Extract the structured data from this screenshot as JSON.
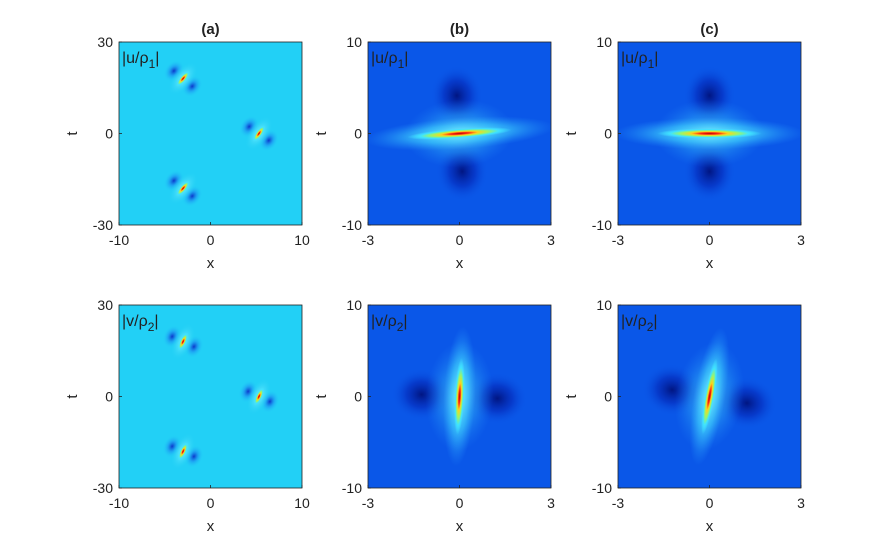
{
  "chart_data": [
    {
      "type": "heatmap",
      "panel": "(a)",
      "row": 0,
      "col": 0,
      "title": "(a)",
      "label": "|u/ρ₁|",
      "label_base": "|u/ρ",
      "label_sub": "1",
      "label_end": "|",
      "xlabel": "x",
      "ylabel": "t",
      "xlim": [
        -10,
        10
      ],
      "ylim": [
        -30,
        30
      ],
      "xticks": [
        "-10",
        "0",
        "10"
      ],
      "yticks": [
        "30",
        "0",
        "-30"
      ],
      "background": "#22d0f6",
      "features": [
        {
          "x": -3,
          "t": 18,
          "angle": -50,
          "kind": "peak"
        },
        {
          "x": 5.3,
          "t": 0,
          "angle": -55,
          "kind": "peak"
        },
        {
          "x": -3,
          "t": -18,
          "angle": -50,
          "kind": "peak"
        }
      ]
    },
    {
      "type": "heatmap",
      "panel": "(b)",
      "row": 0,
      "col": 1,
      "title": "(b)",
      "label": "|u/ρ₁|",
      "label_base": "|u/ρ",
      "label_sub": "1",
      "label_end": "|",
      "xlabel": "x",
      "ylabel": "t",
      "xlim": [
        -3,
        3
      ],
      "ylim": [
        -10,
        10
      ],
      "xticks": [
        "-3",
        "0",
        "3"
      ],
      "yticks": [
        "10",
        "0",
        "-10"
      ],
      "background": "#0a57e8",
      "features": [
        {
          "x": 0,
          "t": 0,
          "angle": -4,
          "kind": "peak"
        }
      ]
    },
    {
      "type": "heatmap",
      "panel": "(c)",
      "row": 0,
      "col": 2,
      "title": "(c)",
      "label": "|u/ρ₁|",
      "label_base": "|u/ρ",
      "label_sub": "1",
      "label_end": "|",
      "xlabel": "x",
      "ylabel": "t",
      "xlim": [
        -3,
        3
      ],
      "ylim": [
        -10,
        10
      ],
      "xticks": [
        "-3",
        "0",
        "3"
      ],
      "yticks": [
        "10",
        "0",
        "-10"
      ],
      "background": "#0a57e8",
      "features": [
        {
          "x": 0,
          "t": 0,
          "angle": 0,
          "kind": "peak"
        }
      ]
    },
    {
      "type": "heatmap",
      "panel": "(a)",
      "row": 1,
      "col": 0,
      "title": "",
      "label": "|v/ρ₂|",
      "label_base": "|v/ρ",
      "label_sub": "2",
      "label_end": "|",
      "xlabel": "x",
      "ylabel": "t",
      "xlim": [
        -10,
        10
      ],
      "ylim": [
        -30,
        30
      ],
      "xticks": [
        "-10",
        "0",
        "10"
      ],
      "yticks": [
        "30",
        "0",
        "-30"
      ],
      "background": "#22d0f6",
      "features": [
        {
          "x": -3,
          "t": 18,
          "angle": -65,
          "kind": "peak"
        },
        {
          "x": 5.3,
          "t": 0,
          "angle": -65,
          "kind": "peak"
        },
        {
          "x": -3,
          "t": -18,
          "angle": -65,
          "kind": "peak"
        }
      ]
    },
    {
      "type": "heatmap",
      "panel": "(b)",
      "row": 1,
      "col": 1,
      "title": "",
      "label": "|v/ρ₂|",
      "label_base": "|v/ρ",
      "label_sub": "2",
      "label_end": "|",
      "xlabel": "x",
      "ylabel": "t",
      "xlim": [
        -3,
        3
      ],
      "ylim": [
        -10,
        10
      ],
      "xticks": [
        "-3",
        "0",
        "3"
      ],
      "yticks": [
        "10",
        "0",
        "-10"
      ],
      "background": "#0a57e8",
      "features": [
        {
          "x": 0,
          "t": 0,
          "angle": -87,
          "kind": "peak"
        }
      ]
    },
    {
      "type": "heatmap",
      "panel": "(c)",
      "row": 1,
      "col": 2,
      "title": "",
      "label": "|v/ρ₂|",
      "label_base": "|v/ρ",
      "label_sub": "2",
      "label_end": "|",
      "xlabel": "x",
      "ylabel": "t",
      "xlim": [
        -3,
        3
      ],
      "ylim": [
        -10,
        10
      ],
      "xticks": [
        "-3",
        "0",
        "3"
      ],
      "yticks": [
        "10",
        "0",
        "-10"
      ],
      "background": "#0a57e8",
      "features": [
        {
          "x": 0,
          "t": 0,
          "angle": -80,
          "kind": "peak"
        }
      ]
    }
  ],
  "colors": {
    "colormap": "jet",
    "peak": "#e01010",
    "ring_yellow": "#f6f03a",
    "ring_cyan": "#5ef0ff",
    "dark": "#001a9c",
    "axis": "#222222"
  }
}
